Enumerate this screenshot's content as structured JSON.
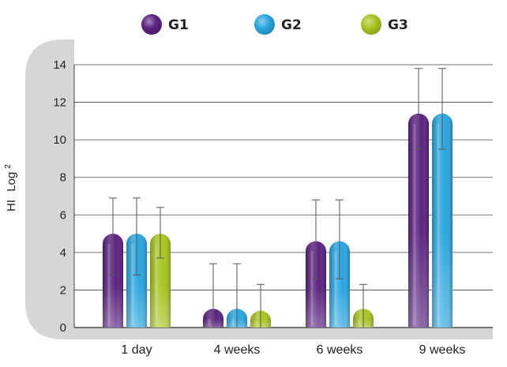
{
  "chart_data": {
    "type": "bar",
    "title": "",
    "xlabel": "",
    "ylabel": "HI",
    "ylabel_unit": "Log",
    "ylabel_superscript": "2",
    "ylim": [
      0,
      14
    ],
    "yticks": [
      0,
      2,
      4,
      6,
      8,
      10,
      12,
      14
    ],
    "grid": true,
    "legend_position": "top",
    "categories": [
      "1 day",
      "4 weeks",
      "6 weeks",
      "9 weeks"
    ],
    "series": [
      {
        "name": "G1",
        "color": "#5b2380",
        "values": [
          5.0,
          1.0,
          4.6,
          11.4
        ],
        "error_low": [
          2.8,
          0.0,
          2.6,
          9.5
        ],
        "error_high": [
          6.9,
          3.4,
          6.8,
          13.8
        ]
      },
      {
        "name": "G2",
        "color": "#2aa6e0",
        "values": [
          5.0,
          1.0,
          4.6,
          11.4
        ],
        "error_low": [
          2.8,
          0.0,
          2.6,
          9.5
        ],
        "error_high": [
          6.9,
          3.4,
          6.8,
          13.8
        ]
      },
      {
        "name": "G3",
        "color": "#a8c520",
        "values": [
          5.0,
          0.9,
          1.0,
          null
        ],
        "error_low": [
          3.7,
          0.0,
          0.0,
          null
        ],
        "error_high": [
          6.4,
          2.3,
          2.3,
          null
        ]
      }
    ]
  }
}
